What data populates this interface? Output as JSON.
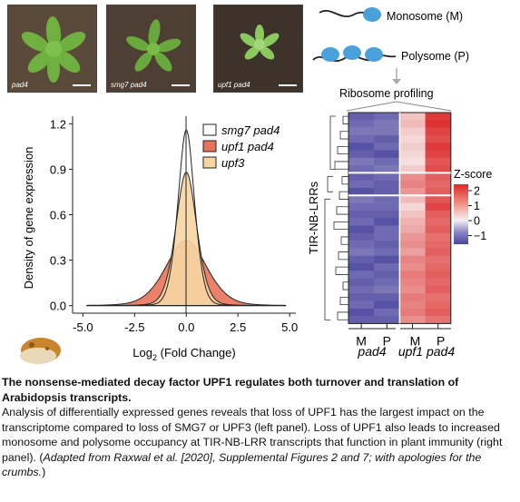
{
  "photos": [
    {
      "label": "pad4"
    },
    {
      "label": "smg7 pad4"
    },
    {
      "label": "upf1 pad4"
    }
  ],
  "schematic": {
    "monosome": "Monosome (M)",
    "polysome": "Polysome (P)",
    "profiling": "Ribosome profiling"
  },
  "chart_data": {
    "type": "area",
    "ylabel": "Density of gene expression",
    "xlabel_main": "Log",
    "xlabel_sub": "2",
    "xlabel_rest": " (Fold Change)",
    "x_ticks": [
      "-5.0",
      "-2.5",
      "0.0",
      "2.5",
      "5.0"
    ],
    "y_ticks": [
      "0.0",
      "0.3",
      "0.6",
      "0.9",
      "1.2"
    ],
    "xlim": [
      -5.5,
      5.3
    ],
    "ylim": [
      -0.05,
      1.25
    ],
    "series": [
      {
        "name": "smg7 pad4",
        "color": "#ffffff",
        "peak": 1.16,
        "sigma": 0.45,
        "tail": 0.6
      },
      {
        "name": "upf1 pad4",
        "color": "#e8735a",
        "peak": 0.43,
        "sigma": 1.05,
        "tail": 1.6
      },
      {
        "name": "upf3",
        "color": "#f7d5a2",
        "peak": 0.88,
        "sigma": 0.55,
        "tail": 0.8
      }
    ]
  },
  "heatmap": {
    "row_label": "TIR-NB-LRRs",
    "legend_title": "Z-score",
    "legend_ticks": [
      "2",
      "1",
      "0",
      "−1"
    ],
    "col_labels": [
      "M",
      "P",
      "M",
      "P"
    ],
    "group_labels": [
      "pad4",
      "upf1 pad4"
    ],
    "rows": [
      [
        -1.1,
        -1.0,
        0.4,
        1.9
      ],
      [
        -1.0,
        -0.9,
        0.5,
        2.0
      ],
      [
        -0.9,
        -0.9,
        0.3,
        1.8
      ],
      [
        -1.0,
        -1.1,
        0.2,
        1.7
      ],
      [
        -1.2,
        -1.0,
        0.3,
        1.9
      ],
      [
        -1.1,
        -1.2,
        0.2,
        1.8
      ],
      [
        -0.9,
        -1.0,
        0.1,
        1.6
      ],
      [
        -1.0,
        -0.9,
        0.3,
        1.7
      ],
      [
        -1.1,
        -1.0,
        1.0,
        1.5
      ],
      [
        -1.0,
        -1.1,
        1.1,
        1.4
      ],
      [
        -1.2,
        -1.1,
        0.9,
        1.5
      ],
      [
        -0.9,
        -1.0,
        0.5,
        1.6
      ],
      [
        -1.0,
        -1.0,
        0.2,
        1.8
      ],
      [
        -1.1,
        -1.1,
        0.4,
        1.5
      ],
      [
        -1.0,
        -1.2,
        0.6,
        1.4
      ],
      [
        -1.2,
        -1.0,
        0.7,
        1.5
      ],
      [
        -1.1,
        -1.0,
        0.9,
        1.3
      ],
      [
        -1.0,
        -1.1,
        1.0,
        1.4
      ],
      [
        -0.9,
        -1.0,
        0.8,
        1.5
      ],
      [
        -1.1,
        -1.2,
        1.1,
        1.3
      ],
      [
        -1.2,
        -1.0,
        1.0,
        1.4
      ],
      [
        -1.0,
        -1.1,
        1.2,
        1.5
      ],
      [
        -1.1,
        -1.0,
        1.1,
        1.4
      ],
      [
        -1.0,
        -0.9,
        1.0,
        1.5
      ],
      [
        -1.1,
        -1.1,
        1.2,
        1.3
      ],
      [
        -1.0,
        -1.2,
        1.1,
        1.4
      ],
      [
        -1.2,
        -1.0,
        1.2,
        1.5
      ],
      [
        -1.1,
        -1.1,
        1.0,
        1.3
      ]
    ]
  },
  "caption": {
    "title": "The nonsense-mediated decay factor UPF1 regulates both turnover and translation of Arabidopsis transcripts.",
    "body": "Analysis of differentially expressed genes reveals that loss of UPF1 has the largest impact on the transcriptome compared to loss of SMG7 or UPF3 (left panel). Loss of UPF1 also leads to increased monosome and polysome occupancy at TIR-NB-LRR transcripts that function in plant immunity (right panel). (",
    "italic": "Adapted from Raxwal et al. [2020], Supplemental Figures 2 and 7; with apologies for the crumbs.",
    "end": ")"
  }
}
